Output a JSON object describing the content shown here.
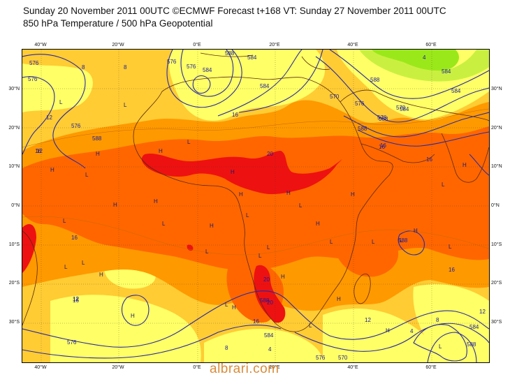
{
  "header": {
    "title": "Sunday 20 November 2011 00UTC ©ECMWF Forecast t+168 VT: Sunday 27 November 2011 00UTC",
    "subtitle": "850 hPa Temperature / 500 hPa Geopotential"
  },
  "axes": {
    "lon_top": [
      "40°W",
      "20°W",
      "0°E",
      "20°E",
      "40°E",
      "60°E"
    ],
    "lon_bottom": [
      "40°W",
      "20°W",
      "0°E",
      "20°E",
      "40°E",
      "60°E"
    ],
    "lat_left": [
      "30°N",
      "20°N",
      "10°N",
      "0°N",
      "10°S",
      "20°S",
      "30°S"
    ],
    "lat_right": [
      "30°N",
      "20°N",
      "10°N",
      "0°N",
      "10°S",
      "20°S",
      "30°S"
    ]
  },
  "contour_labels": {
    "geopotential": [
      "576",
      "576",
      "576",
      "576",
      "576",
      "584",
      "584",
      "584",
      "588",
      "588",
      "588",
      "584",
      "576",
      "570",
      "588",
      "576",
      "588",
      "584",
      "576",
      "570",
      "584",
      "588",
      "588",
      "584",
      "576",
      "570",
      "584",
      "588"
    ],
    "temperature": [
      "8",
      "8",
      "12",
      "12",
      "16",
      "16",
      "20",
      "16",
      "16",
      "16",
      "20",
      "20",
      "16",
      "16",
      "12",
      "12",
      "16",
      "4",
      "8",
      "4",
      "4",
      "8",
      "12",
      "12",
      "16"
    ]
  },
  "pressure_marks": {
    "H": [
      "H",
      "H",
      "H",
      "H",
      "H",
      "H",
      "H",
      "H",
      "H",
      "H",
      "H",
      "H",
      "H",
      "H",
      "H",
      "H",
      "H",
      "H",
      "H"
    ],
    "L": [
      "L",
      "L",
      "L",
      "L",
      "L",
      "L",
      "L",
      "L",
      "L",
      "L",
      "L",
      "L",
      "L",
      "L",
      "L",
      "L",
      "L",
      "L",
      "L",
      "L",
      "L"
    ]
  },
  "colors": {
    "cold_green": "#9be81a",
    "yellow": "#ffff66",
    "light_orange": "#ffcc33",
    "orange": "#ff9900",
    "dark_orange": "#ff6600",
    "red": "#ee1111",
    "contour": "#2a2aa0",
    "coast": "#5a2a10"
  },
  "watermark": "albrari.com"
}
